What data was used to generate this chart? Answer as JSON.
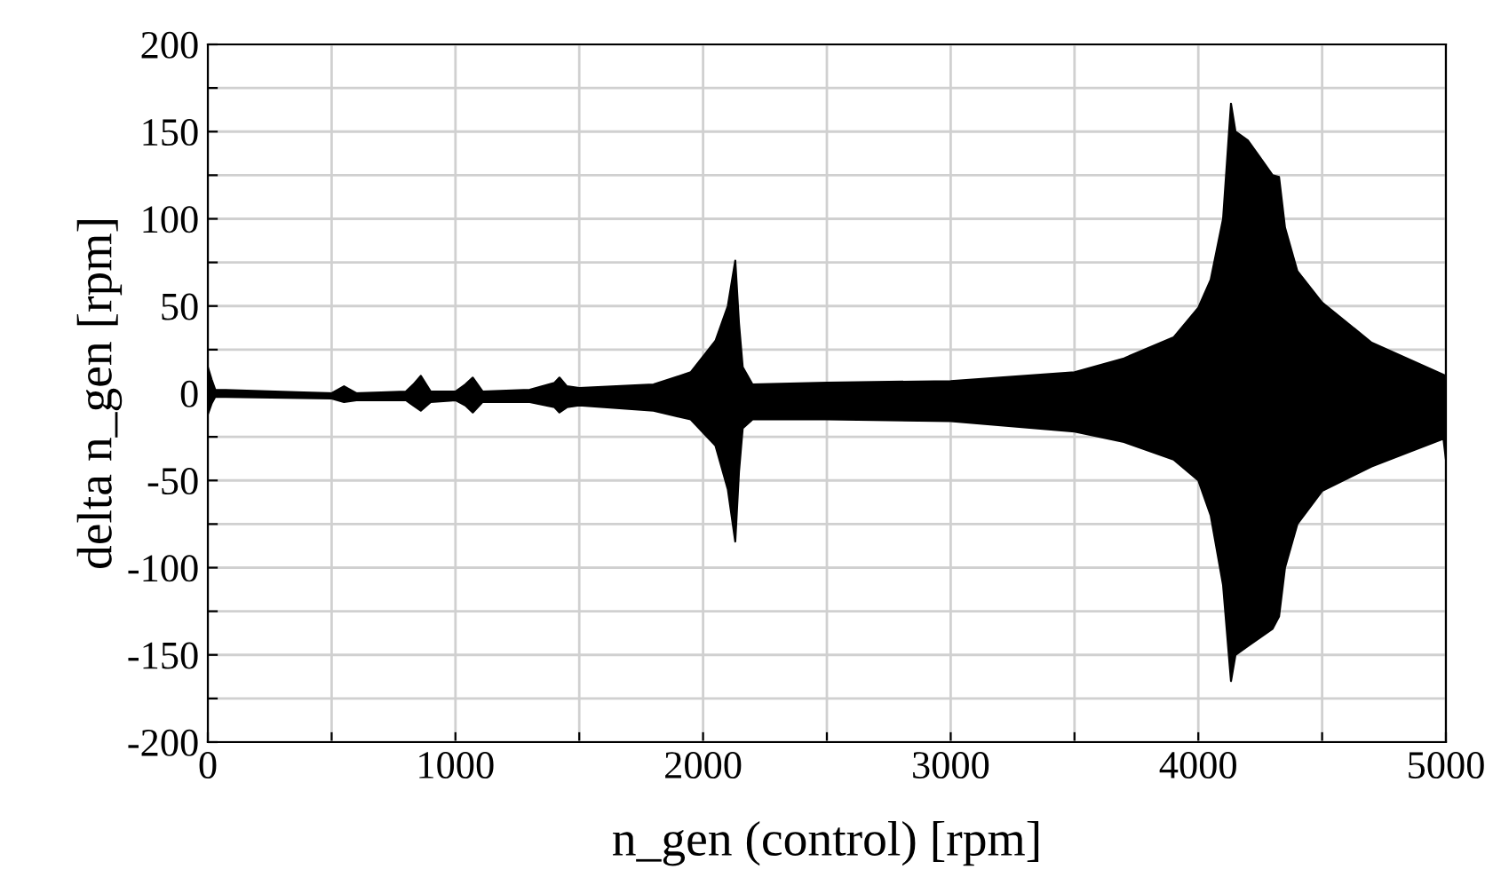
{
  "chart_data": {
    "type": "area",
    "xlabel": "n_gen (control) [rpm]",
    "ylabel": "delta n_gen [rpm]",
    "series": [
      {
        "color": "#000000",
        "x": [
          0,
          15,
          30,
          500,
          550,
          600,
          800,
          830,
          860,
          900,
          1000,
          1040,
          1070,
          1110,
          1300,
          1400,
          1420,
          1450,
          1500,
          1800,
          1950,
          2050,
          2100,
          2130,
          2145,
          2160,
          2200,
          2500,
          3000,
          3500,
          3700,
          3900,
          4000,
          4050,
          4100,
          4132,
          4150,
          4200,
          4250,
          4300,
          4326,
          4350,
          4400,
          4500,
          4700,
          5000
        ],
        "values": [
          15,
          8,
          2,
          0,
          4,
          0,
          1,
          5,
          10,
          1,
          1,
          5,
          9,
          1,
          2,
          6,
          9,
          4,
          3,
          5,
          12,
          30,
          50,
          76,
          40,
          15,
          5,
          6,
          7,
          12,
          20,
          32,
          49,
          65,
          100,
          166,
          150,
          145,
          135,
          125,
          124,
          95,
          70,
          52,
          29,
          10
        ]
      },
      {
        "color": "#000000",
        "x": [
          0,
          15,
          30,
          500,
          550,
          600,
          800,
          830,
          860,
          900,
          1000,
          1040,
          1070,
          1110,
          1300,
          1400,
          1420,
          1450,
          1500,
          1800,
          1950,
          2050,
          2100,
          2130,
          2145,
          2160,
          2200,
          2500,
          3000,
          3500,
          3700,
          3900,
          4000,
          4050,
          4100,
          4132,
          4150,
          4200,
          4250,
          4300,
          4326,
          4350,
          4400,
          4500,
          4700,
          4990,
          5000
        ],
        "values": [
          -12,
          -6,
          -2,
          -3,
          -5,
          -4,
          -4,
          -7,
          -10,
          -5,
          -4,
          -7,
          -11,
          -5,
          -5,
          -8,
          -11,
          -8,
          -7,
          -10,
          -15,
          -30,
          -55,
          -85,
          -45,
          -20,
          -15,
          -15,
          -16,
          -22,
          -28,
          -38,
          -50,
          -70,
          -110,
          -165,
          -150,
          -145,
          -140,
          -135,
          -128,
          -100,
          -75,
          -56,
          -42,
          -26,
          -38
        ]
      }
    ],
    "xlim": [
      0,
      5000
    ],
    "ylim": [
      -200,
      200
    ],
    "xticks": [
      0,
      {
        "value": 500,
        "label": null
      },
      1000,
      {
        "value": 1500,
        "label": null
      },
      2000,
      {
        "value": 2500,
        "label": null
      },
      3000,
      {
        "value": 3500,
        "label": null
      },
      4000,
      {
        "value": 4500,
        "label": null
      },
      5000
    ],
    "yticks": [
      -200,
      {
        "value": -175,
        "label": null
      },
      -150,
      {
        "value": -125,
        "label": null
      },
      -100,
      {
        "value": -75,
        "label": null
      },
      -50,
      {
        "value": -25,
        "label": null
      },
      0,
      {
        "value": 25,
        "label": null
      },
      50,
      {
        "value": 75,
        "label": null
      },
      100,
      {
        "value": 125,
        "label": null
      },
      150,
      {
        "value": 175,
        "label": null
      },
      200
    ],
    "grid": true
  }
}
